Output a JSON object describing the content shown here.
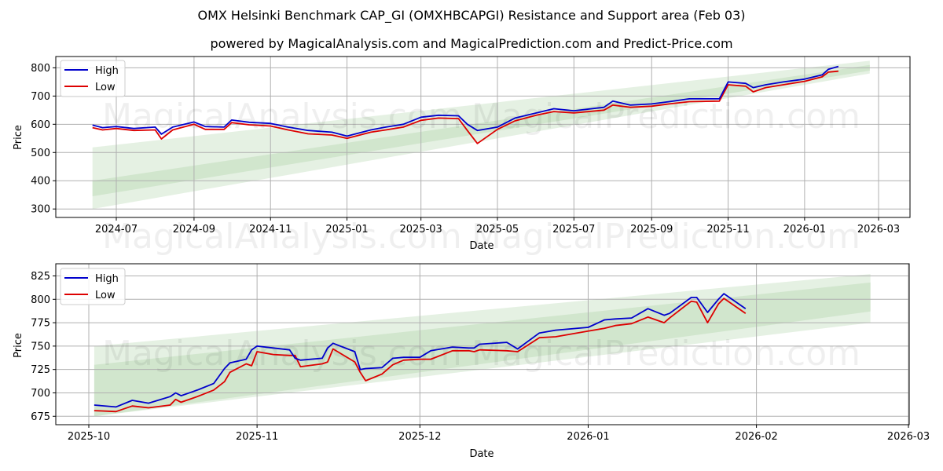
{
  "header": {
    "title": "OMX Helsinki Benchmark CAP_GI (OMXHBCAPGI) Resistance and Support area (Feb 03)",
    "subtitle": "powered by MagicalAnalysis.com and MagicalPrediction.com and Predict-Price.com"
  },
  "watermarks": [
    "MagicalAnalysis.com",
    "MagicalPrediction.com"
  ],
  "colors": {
    "high": "#0000cc",
    "low": "#dd0000",
    "band_outer": "#e2efe0",
    "band_inner": "#c9e2c6",
    "grid": "#b0b0b0"
  },
  "chart_data": [
    {
      "type": "line",
      "title": "Full history",
      "xlabel": "Date",
      "ylabel": "Price",
      "ylim": [
        270,
        840
      ],
      "grid": true,
      "legend_position": "upper left",
      "x_ticks": [
        "2024-07",
        "2024-09",
        "2024-11",
        "2025-01",
        "2025-03",
        "2025-05",
        "2025-07",
        "2025-09",
        "2025-11",
        "2026-01",
        "2026-03"
      ],
      "y_ticks": [
        300,
        400,
        500,
        600,
        700,
        800
      ],
      "legend": [
        "High",
        "Low"
      ],
      "x": [
        "2024-06-12",
        "2024-06-20",
        "2024-07-01",
        "2024-07-15",
        "2024-08-01",
        "2024-08-06",
        "2024-08-15",
        "2024-09-01",
        "2024-09-10",
        "2024-09-25",
        "2024-10-01",
        "2024-10-15",
        "2024-11-01",
        "2024-11-15",
        "2024-12-01",
        "2024-12-20",
        "2025-01-01",
        "2025-01-20",
        "2025-02-01",
        "2025-02-15",
        "2025-03-01",
        "2025-03-15",
        "2025-03-31",
        "2025-04-07",
        "2025-04-15",
        "2025-05-01",
        "2025-05-15",
        "2025-06-01",
        "2025-06-15",
        "2025-07-01",
        "2025-07-25",
        "2025-08-01",
        "2025-08-15",
        "2025-09-01",
        "2025-09-15",
        "2025-10-01",
        "2025-10-25",
        "2025-11-01",
        "2025-11-15",
        "2025-11-21",
        "2025-12-01",
        "2025-12-15",
        "2026-01-01",
        "2026-01-15",
        "2026-01-20",
        "2026-01-28"
      ],
      "series": [
        {
          "name": "High",
          "values": [
            597,
            588,
            592,
            585,
            590,
            565,
            590,
            608,
            592,
            590,
            615,
            607,
            603,
            590,
            578,
            572,
            558,
            580,
            590,
            600,
            625,
            632,
            630,
            600,
            578,
            590,
            622,
            640,
            655,
            648,
            660,
            682,
            668,
            672,
            680,
            690,
            690,
            750,
            745,
            730,
            740,
            750,
            760,
            775,
            795,
            805
          ]
        },
        {
          "name": "Low",
          "values": [
            588,
            580,
            585,
            578,
            580,
            548,
            580,
            600,
            582,
            582,
            606,
            598,
            594,
            580,
            566,
            562,
            550,
            572,
            580,
            590,
            614,
            622,
            620,
            578,
            532,
            582,
            612,
            632,
            645,
            640,
            650,
            668,
            660,
            664,
            672,
            680,
            682,
            740,
            735,
            715,
            730,
            740,
            752,
            768,
            785,
            788
          ]
        }
      ],
      "bands": [
        {
          "name": "outer",
          "x_range": [
            "2024-06-12",
            "2026-02-22"
          ],
          "lower": [
            300,
            780
          ],
          "upper": [
            518,
            825
          ]
        },
        {
          "name": "inner",
          "x_range": [
            "2024-06-12",
            "2026-02-22"
          ],
          "lower": [
            345,
            790
          ],
          "upper": [
            400,
            810
          ]
        }
      ]
    },
    {
      "type": "line",
      "title": "Recent zoom",
      "xlabel": "Date",
      "ylabel": "Price",
      "ylim": [
        666,
        838
      ],
      "grid": true,
      "legend_position": "upper left",
      "x_ticks": [
        "2025-10",
        "2025-11",
        "2025-12",
        "2026-01",
        "2026-02",
        "2026-03"
      ],
      "y_ticks": [
        675,
        700,
        725,
        750,
        775,
        800,
        825
      ],
      "legend": [
        "High",
        "Low"
      ],
      "x": [
        "2025-10-02",
        "2025-10-06",
        "2025-10-09",
        "2025-10-12",
        "2025-10-16",
        "2025-10-17",
        "2025-10-18",
        "2025-10-20",
        "2025-10-21",
        "2025-10-24",
        "2025-10-26",
        "2025-10-27",
        "2025-10-30",
        "2025-10-31",
        "2025-11-01",
        "2025-11-04",
        "2025-11-07",
        "2025-11-08",
        "2025-11-09",
        "2025-11-13",
        "2025-11-14",
        "2025-11-15",
        "2025-11-19",
        "2025-11-20",
        "2025-11-21",
        "2025-11-24",
        "2025-11-26",
        "2025-11-28",
        "2025-12-01",
        "2025-12-03",
        "2025-12-07",
        "2025-12-10",
        "2025-12-11",
        "2025-12-12",
        "2025-12-17",
        "2025-12-19",
        "2025-12-23",
        "2025-12-26",
        "2026-01-01",
        "2026-01-04",
        "2026-01-06",
        "2026-01-09",
        "2026-01-12",
        "2026-01-15",
        "2026-01-16",
        "2026-01-20",
        "2026-01-21",
        "2026-01-23",
        "2026-01-25",
        "2026-01-26",
        "2026-01-30"
      ],
      "series": [
        {
          "name": "High",
          "values": [
            687,
            685,
            692,
            689,
            696,
            700,
            697,
            701,
            703,
            710,
            726,
            732,
            736,
            746,
            750,
            748,
            746,
            737,
            735,
            737,
            748,
            753,
            744,
            725,
            726,
            727,
            737,
            738,
            738,
            745,
            749,
            748,
            748,
            752,
            754,
            747,
            764,
            767,
            770,
            778,
            779,
            780,
            790,
            783,
            785,
            802,
            802,
            786,
            800,
            806,
            790
          ]
        },
        {
          "name": "Low",
          "values": [
            681,
            680,
            686,
            684,
            687,
            693,
            690,
            694,
            696,
            703,
            712,
            722,
            731,
            729,
            744,
            741,
            740,
            740,
            728,
            731,
            733,
            747,
            733,
            722,
            713,
            720,
            730,
            735,
            736,
            736,
            745,
            745,
            744,
            746,
            745,
            744,
            759,
            760,
            766,
            769,
            772,
            774,
            781,
            775,
            780,
            798,
            797,
            775,
            795,
            801,
            785
          ]
        }
      ],
      "bands": [
        {
          "name": "outer",
          "x_range": [
            "2025-10-02",
            "2026-02-22"
          ],
          "lower": [
            675,
            775
          ],
          "upper": [
            750,
            827
          ]
        },
        {
          "name": "inner",
          "x_range": [
            "2025-10-02",
            "2026-02-22"
          ],
          "lower": [
            675,
            787
          ],
          "upper": [
            730,
            818
          ]
        }
      ]
    }
  ]
}
